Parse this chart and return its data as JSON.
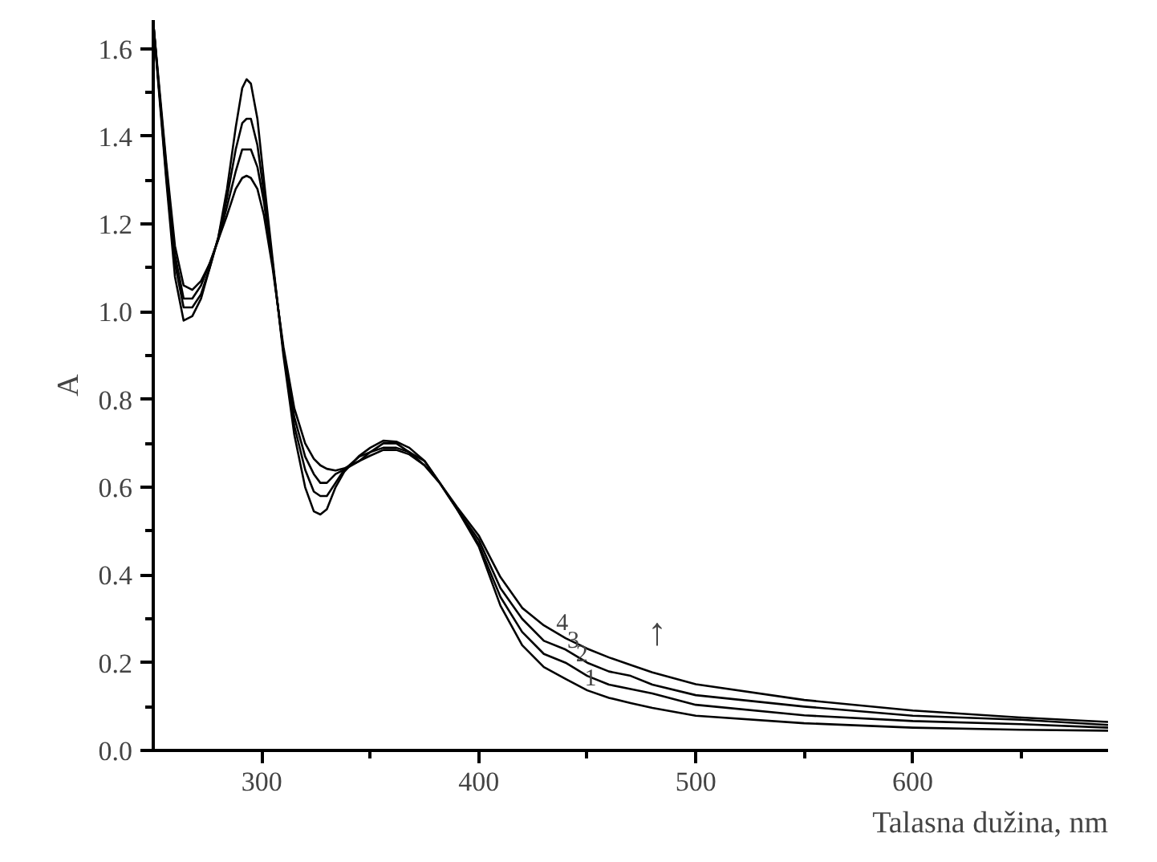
{
  "chart_data": {
    "type": "line",
    "xlabel": "Talasna dužina, nm",
    "ylabel": "A",
    "x": [
      250,
      253,
      256,
      260,
      264,
      268,
      272,
      276,
      280,
      284,
      288,
      291,
      293,
      295,
      298,
      301,
      305,
      310,
      315,
      320,
      324,
      327,
      330,
      334,
      338,
      345,
      350,
      356,
      362,
      368,
      375,
      382,
      390,
      400,
      410,
      420,
      430,
      440,
      450,
      460,
      470,
      480,
      500,
      550,
      600,
      650,
      690
    ],
    "series": [
      {
        "color": "#000000",
        "values": [
          1.66,
          1.48,
          1.3,
          1.08,
          0.98,
          0.99,
          1.03,
          1.1,
          1.17,
          1.28,
          1.42,
          1.51,
          1.53,
          1.52,
          1.44,
          1.3,
          1.12,
          0.9,
          0.72,
          0.6,
          0.545,
          0.538,
          0.55,
          0.6,
          0.635,
          0.672,
          0.69,
          0.706,
          0.704,
          0.69,
          0.66,
          0.61,
          0.55,
          0.465,
          0.33,
          0.24,
          0.19,
          0.163,
          0.137,
          0.12,
          0.108,
          0.097,
          0.079,
          0.062,
          0.052,
          0.047,
          0.045
        ]
      },
      {
        "color": "#000000",
        "values": [
          1.66,
          1.49,
          1.31,
          1.11,
          1.01,
          1.01,
          1.04,
          1.1,
          1.17,
          1.26,
          1.37,
          1.43,
          1.44,
          1.44,
          1.38,
          1.27,
          1.11,
          0.91,
          0.74,
          0.64,
          0.59,
          0.58,
          0.58,
          0.61,
          0.64,
          0.67,
          0.68,
          0.7,
          0.7,
          0.68,
          0.66,
          0.61,
          0.55,
          0.47,
          0.35,
          0.27,
          0.22,
          0.2,
          0.17,
          0.15,
          0.14,
          0.13,
          0.104,
          0.08,
          0.067,
          0.06,
          0.052
        ]
      },
      {
        "color": "#000000",
        "values": [
          1.66,
          1.49,
          1.33,
          1.13,
          1.03,
          1.03,
          1.06,
          1.11,
          1.165,
          1.24,
          1.32,
          1.37,
          1.37,
          1.37,
          1.33,
          1.25,
          1.11,
          0.91,
          0.76,
          0.67,
          0.63,
          0.61,
          0.61,
          0.63,
          0.64,
          0.66,
          0.68,
          0.69,
          0.69,
          0.68,
          0.65,
          0.61,
          0.55,
          0.48,
          0.37,
          0.3,
          0.25,
          0.23,
          0.2,
          0.18,
          0.17,
          0.15,
          0.126,
          0.1,
          0.079,
          0.07,
          0.058
        ]
      },
      {
        "color": "#000000",
        "values": [
          1.66,
          1.5,
          1.34,
          1.15,
          1.06,
          1.05,
          1.07,
          1.11,
          1.165,
          1.22,
          1.28,
          1.305,
          1.31,
          1.305,
          1.28,
          1.22,
          1.1,
          0.92,
          0.78,
          0.7,
          0.665,
          0.65,
          0.642,
          0.638,
          0.643,
          0.66,
          0.672,
          0.685,
          0.685,
          0.675,
          0.65,
          0.61,
          0.555,
          0.49,
          0.395,
          0.325,
          0.285,
          0.256,
          0.232,
          0.212,
          0.195,
          0.178,
          0.151,
          0.115,
          0.091,
          0.075,
          0.065
        ]
      }
    ],
    "xlim": [
      250,
      690
    ],
    "ylim": [
      0,
      1.665
    ],
    "xticks": [
      300,
      {
        "value": 350,
        "label": null
      },
      400,
      {
        "value": 450,
        "label": null
      },
      500,
      {
        "value": 550,
        "label": null
      },
      600,
      {
        "value": 650,
        "label": null
      }
    ],
    "yticks": [
      {
        "value": 0,
        "label": "0.0"
      },
      {
        "value": 0.1,
        "label": null
      },
      {
        "value": 0.2,
        "label": "0.2"
      },
      {
        "value": 0.3,
        "label": null
      },
      {
        "value": 0.4,
        "label": "0.4"
      },
      {
        "value": 0.5,
        "label": null
      },
      {
        "value": 0.6,
        "label": "0.6"
      },
      {
        "value": 0.7,
        "label": null
      },
      {
        "value": 0.8,
        "label": "0.8"
      },
      {
        "value": 0.9,
        "label": null
      },
      {
        "value": 1.0,
        "label": "1.0"
      },
      {
        "value": 1.1,
        "label": null
      },
      {
        "value": 1.2,
        "label": "1.2"
      },
      {
        "value": 1.3,
        "label": null
      },
      {
        "value": 1.4,
        "label": "1.4"
      },
      {
        "value": 1.5,
        "label": null
      },
      {
        "value": 1.6,
        "label": "1.6"
      }
    ],
    "annotations": [
      {
        "text": "4",
        "x": 440,
        "y": 0.256
      },
      {
        "text": "3",
        "x": 445,
        "y": 0.215
      },
      {
        "text": "2",
        "x": 449,
        "y": 0.185
      },
      {
        "text": "1",
        "x": 453,
        "y": 0.13
      },
      "↑"
    ],
    "grid": false,
    "marker": "none",
    "line_style": "solid"
  }
}
